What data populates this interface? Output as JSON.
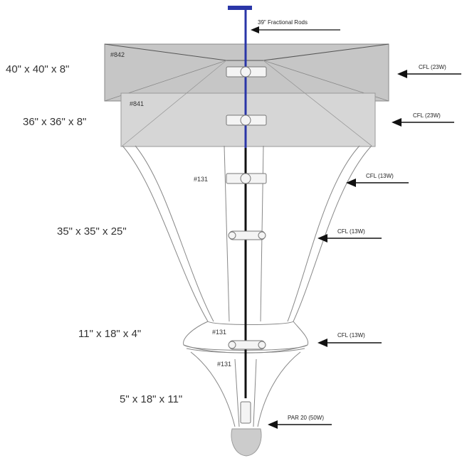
{
  "title_callout": "39\" Fractional Rods",
  "sections": [
    {
      "dimension": "40\" x 40\" x 8\"",
      "part": "#842",
      "lamp": "CFL (23W)"
    },
    {
      "dimension": "36\" x 36\" x 8\"",
      "part": "#841",
      "lamp": "CFL (23W)"
    },
    {
      "dimension": "",
      "part": "#131",
      "lamp": "CFL (13W)"
    },
    {
      "dimension": "35\" x 35\" x 25\"",
      "part": "",
      "lamp": "CFL (13W)"
    },
    {
      "dimension": "11\" x 18\" x 4\"",
      "part": "#131",
      "lamp": "CFL (13W)"
    },
    {
      "dimension": "",
      "part": "#131",
      "lamp": ""
    },
    {
      "dimension": "5\" x 18\" x 11\"",
      "part": "",
      "lamp": "PAR 20 (50W)"
    }
  ],
  "colors": {
    "rod_top": "#2a36a8",
    "rod_bottom": "#111111",
    "box_top": "#c6c6c6",
    "box_second": "#d6d6d6",
    "outline": "#666666",
    "arrow": "#111111",
    "bulb": "#cccccc"
  }
}
